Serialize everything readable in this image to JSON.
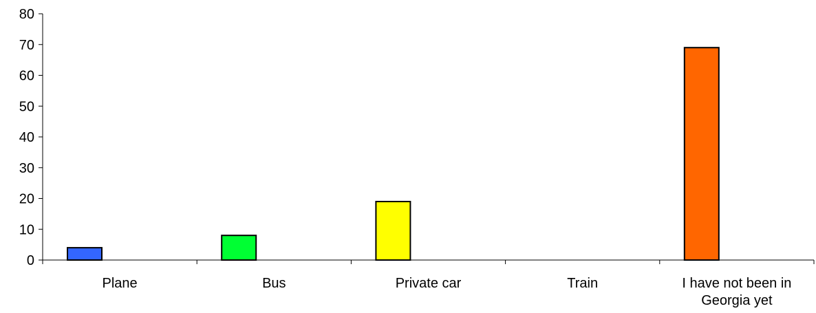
{
  "chart_data": {
    "type": "bar",
    "categories": [
      [
        "Plane"
      ],
      [
        "Bus"
      ],
      [
        "Private car"
      ],
      [
        "Train"
      ],
      [
        "I have not been in",
        "Georgia yet"
      ]
    ],
    "values": [
      4,
      8,
      19,
      0,
      69
    ],
    "colors": [
      "#3366ff",
      "#00ff33",
      "#ffff00",
      "#cccccc",
      "#ff6600"
    ],
    "ylim": [
      0,
      80
    ],
    "yticks": [
      0,
      10,
      20,
      30,
      40,
      50,
      60,
      70,
      80
    ],
    "title": "",
    "xlabel": "",
    "ylabel": "",
    "grid": false,
    "legend": "none"
  }
}
